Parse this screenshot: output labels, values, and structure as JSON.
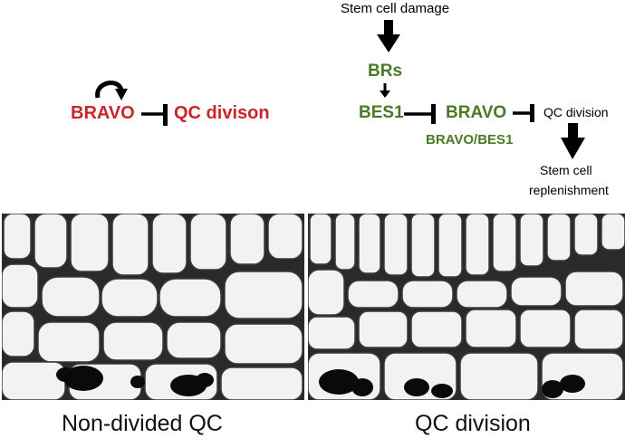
{
  "left_diagram": {
    "bravo": "BRAVO",
    "qc_division": "QC divison",
    "color": "#c8252c"
  },
  "right_diagram": {
    "stem_cell_damage": "Stem cell damage",
    "brs": "BRs",
    "bes1": "BES1",
    "bravo": "BRAVO",
    "bravo_bes1": "BRAVO/BES1",
    "qc_division": "QC division",
    "replenishment_line1": "Stem cell",
    "replenishment_line2": "replenishment",
    "color": "#4a7a25"
  },
  "captions": {
    "left": "Non-divided QC",
    "right": "QC division"
  }
}
